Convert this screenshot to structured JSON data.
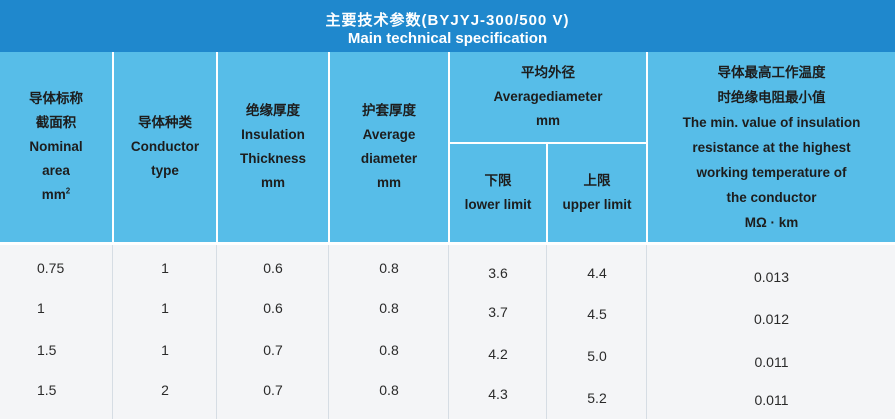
{
  "title": {
    "cn": "主要技术参数(BYJYJ-300/500 V)",
    "en": "Main technical specification"
  },
  "headers": {
    "area": {
      "cn1": "导体标称",
      "cn2": "截面积",
      "en1": "Nominal",
      "en2": "area",
      "unit": "mm",
      "unit_sup": "2"
    },
    "conductor": {
      "cn": "导体种类",
      "en1": "Conductor",
      "en2": "type"
    },
    "insulation": {
      "cn": "绝缘厚度",
      "en1": "Insulation",
      "en2": "Thickness",
      "unit": "mm"
    },
    "sheath": {
      "cn": "护套厚度",
      "en1": "Average",
      "en2": "diameter",
      "unit": "mm"
    },
    "outer_diameter": {
      "cn": "平均外径",
      "en": "Averagediameter",
      "unit": "mm"
    },
    "lower": {
      "cn": "下限",
      "en": "lower limit"
    },
    "upper": {
      "cn": "上限",
      "en": "upper limit"
    },
    "resistance": {
      "cn1": "导体最高工作温度",
      "cn2": "时绝缘电阻最小值",
      "en1": "The min. value of insulation",
      "en2": "resistance at the highest",
      "en3": "working temperature of",
      "en4": "the conductor",
      "unit": "MΩ · km"
    }
  },
  "rows": [
    {
      "area": "0.75",
      "type": "1",
      "insulation": "0.6",
      "sheath": "0.8",
      "lower": "3.6",
      "upper": "4.4",
      "resistance": "0.013"
    },
    {
      "area": "1",
      "type": "1",
      "insulation": "0.6",
      "sheath": "0.8",
      "lower": "3.7",
      "upper": "4.5",
      "resistance": "0.012"
    },
    {
      "area": "1.5",
      "type": "1",
      "insulation": "0.7",
      "sheath": "0.8",
      "lower": "4.2",
      "upper": "5.0",
      "resistance": "0.011"
    },
    {
      "area": "1.5",
      "type": "2",
      "insulation": "0.7",
      "sheath": "0.8",
      "lower": "4.3",
      "upper": "5.2",
      "resistance": "0.011"
    }
  ]
}
